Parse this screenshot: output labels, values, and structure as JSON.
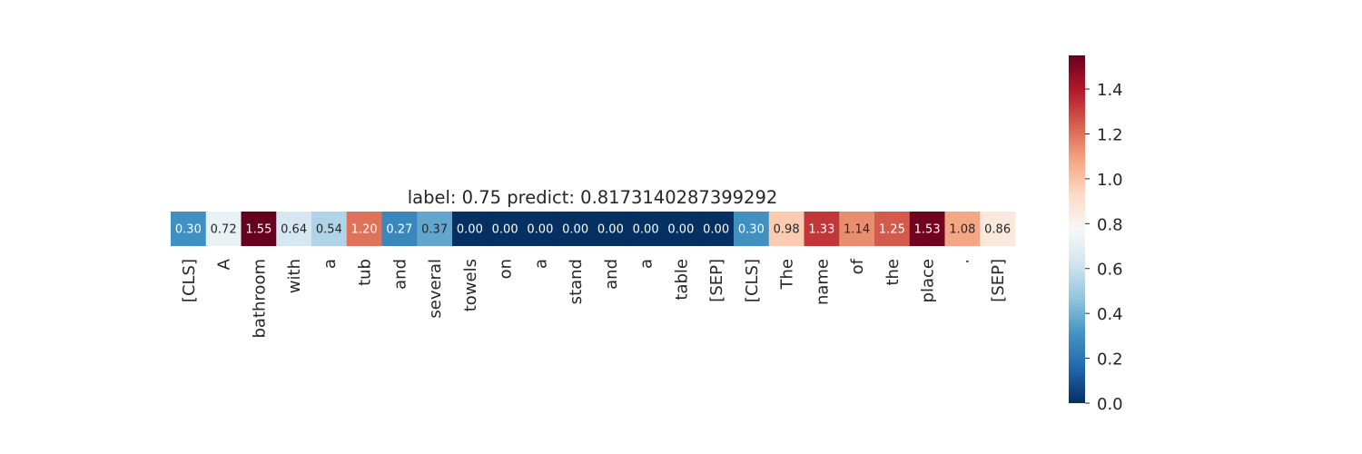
{
  "chart_data": {
    "type": "heatmap",
    "title": "label: 0.75 predict: 0.8173140287399292",
    "tokens": [
      "[CLS]",
      "A",
      "bathroom",
      "with",
      "a",
      "tub",
      "and",
      "several",
      "towels",
      "on",
      "a",
      "stand",
      "and",
      "a",
      "table",
      "[SEP]",
      "[CLS]",
      "The",
      "name",
      "of",
      "the",
      "place",
      ".",
      "[SEP]"
    ],
    "values": [
      0.3,
      0.72,
      1.55,
      0.64,
      0.54,
      1.2,
      0.27,
      0.37,
      0.0,
      0.0,
      0.0,
      0.0,
      0.0,
      0.0,
      0.0,
      0.0,
      0.3,
      0.98,
      1.33,
      1.14,
      1.25,
      1.53,
      1.08,
      0.86
    ],
    "value_labels": [
      "0.30",
      "0.72",
      "1.55",
      "0.64",
      "0.54",
      "1.20",
      "0.27",
      "0.37",
      "0.00",
      "0.00",
      "0.00",
      "0.00",
      "0.00",
      "0.00",
      "0.00",
      "0.00",
      "0.30",
      "0.98",
      "1.33",
      "1.14",
      "1.25",
      "1.53",
      "1.08",
      "0.86"
    ],
    "colormap": "RdBu_r",
    "vmin": 0.0,
    "vmax": 1.55,
    "colorbar": {
      "ticks": [
        0.0,
        0.2,
        0.4,
        0.6,
        0.8,
        1.0,
        1.2,
        1.4
      ],
      "tick_labels": [
        "0.0",
        "0.2",
        "0.4",
        "0.6",
        "0.8",
        "1.0",
        "1.2",
        "1.4"
      ]
    }
  }
}
